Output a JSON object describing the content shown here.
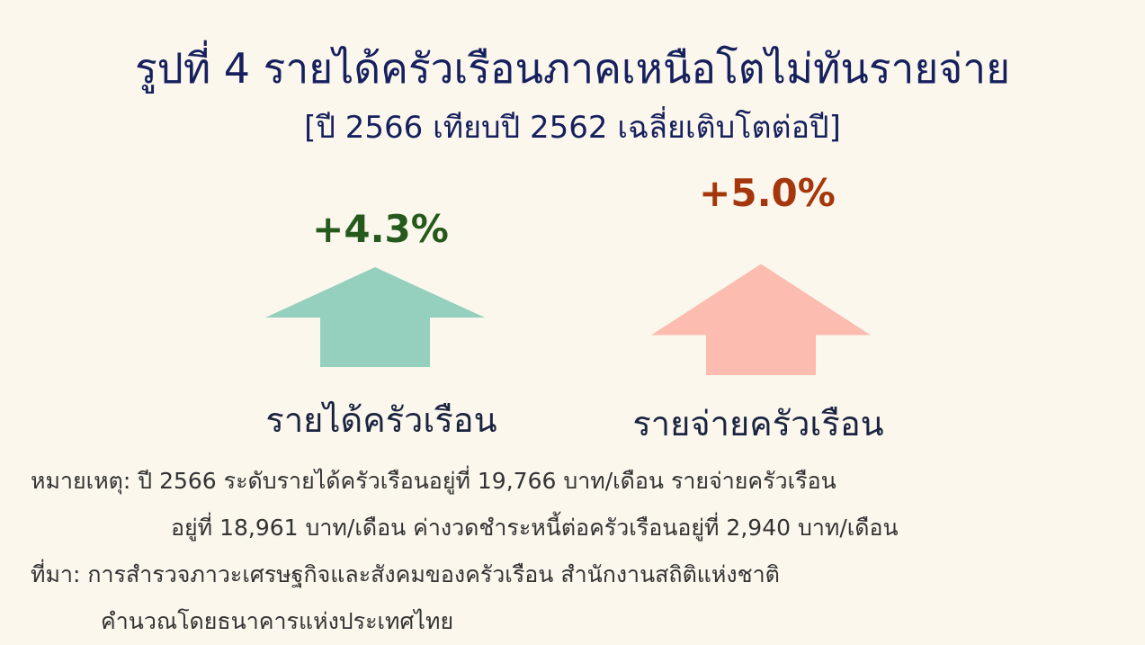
{
  "title": "รูปที่ 4 รายได้ครัวเรือนภาคเหนือโตไม่ทันรายจ่าย",
  "subtitle": "[ปี 2566 เทียบปี 2562 เฉลี่ยเติบโตต่อปี]",
  "chart_data": {
    "type": "bar",
    "categories": [
      "รายได้ครัวเรือน",
      "รายจ่ายครัวเรือน"
    ],
    "values": [
      4.3,
      5.0
    ],
    "value_labels": [
      "+4.3%",
      "+5.0%"
    ],
    "colors": {
      "arrow": [
        "#95d0bf",
        "#fcbcb0"
      ],
      "label": [
        "#265a1c",
        "#a5370c"
      ]
    }
  },
  "notes": {
    "note_line1": "หมายเหตุ: ปี 2566 ระดับรายได้ครัวเรือนอยู่ที่ 19,766 บาท/เดือน รายจ่ายครัวเรือน",
    "note_line2": "อยู่ที่ 18,961 บาท/เดือน ค่างวดชำระหนี้ต่อครัวเรือนอยู่ที่ 2,940 บาท/เดือน",
    "source_line1": "ที่มา: การสำรวจภาวะเศรษฐกิจและสังคมของครัวเรือน สำนักงานสถิติแห่งชาติ",
    "source_line2": "คำนวณโดยธนาคารแห่งประเทศไทย"
  }
}
